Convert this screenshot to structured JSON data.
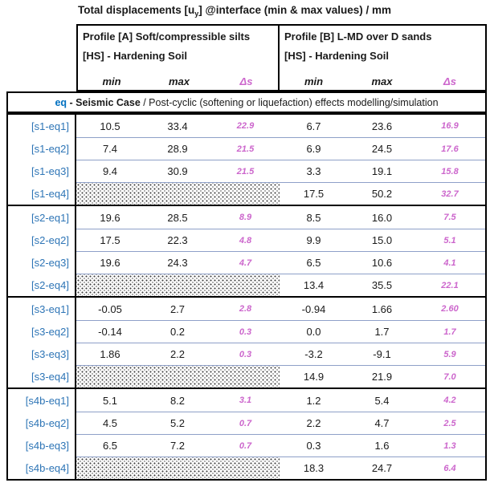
{
  "title": {
    "prefix": "Total displacements [u",
    "sub": "y",
    "suffix": "] @interface (min & max values) / mm"
  },
  "header": {
    "profile_a": {
      "line1": "Profile [A] Soft/compressible silts",
      "line2": "[HS] - Hardening Soil"
    },
    "profile_b": {
      "line1": "Profile [B] L-MD over D sands",
      "line2": "[HS] - Hardening Soil"
    },
    "columns": {
      "min": "min",
      "max": "max",
      "delta": "Δs"
    }
  },
  "section_header": {
    "eq": "eq",
    "case_label": " - Seismic Case",
    "description": " / Post-cyclic (softening or liquefaction) effects modelling/simulation"
  },
  "groups": [
    {
      "rows": [
        {
          "label": "[s1-eq1]",
          "hatched_a": false,
          "a": [
            "10.5",
            "33.4",
            "22.9"
          ],
          "b": [
            "6.7",
            "23.6",
            "16.9"
          ]
        },
        {
          "label": "[s1-eq2]",
          "hatched_a": false,
          "a": [
            "7.4",
            "28.9",
            "21.5"
          ],
          "b": [
            "6.9",
            "24.5",
            "17.6"
          ]
        },
        {
          "label": "[s1-eq3]",
          "hatched_a": false,
          "a": [
            "9.4",
            "30.9",
            "21.5"
          ],
          "b": [
            "3.3",
            "19.1",
            "15.8"
          ]
        },
        {
          "label": "[s1-eq4]",
          "hatched_a": true,
          "a": null,
          "b": [
            "17.5",
            "50.2",
            "32.7"
          ]
        }
      ]
    },
    {
      "rows": [
        {
          "label": "[s2-eq1]",
          "hatched_a": false,
          "a": [
            "19.6",
            "28.5",
            "8.9"
          ],
          "b": [
            "8.5",
            "16.0",
            "7.5"
          ]
        },
        {
          "label": "[s2-eq2]",
          "hatched_a": false,
          "a": [
            "17.5",
            "22.3",
            "4.8"
          ],
          "b": [
            "9.9",
            "15.0",
            "5.1"
          ]
        },
        {
          "label": "[s2-eq3]",
          "hatched_a": false,
          "a": [
            "19.6",
            "24.3",
            "4.7"
          ],
          "b": [
            "6.5",
            "10.6",
            "4.1"
          ]
        },
        {
          "label": "[s2-eq4]",
          "hatched_a": true,
          "a": null,
          "b": [
            "13.4",
            "35.5",
            "22.1"
          ]
        }
      ]
    },
    {
      "rows": [
        {
          "label": "[s3-eq1]",
          "hatched_a": false,
          "a": [
            "-0.05",
            "2.7",
            "2.8"
          ],
          "b": [
            "-0.94",
            "1.66",
            "2.60"
          ]
        },
        {
          "label": "[s3-eq2]",
          "hatched_a": false,
          "a": [
            "-0.14",
            "0.2",
            "0.3"
          ],
          "b": [
            "0.0",
            "1.7",
            "1.7"
          ]
        },
        {
          "label": "[s3-eq3]",
          "hatched_a": false,
          "a": [
            "1.86",
            "2.2",
            "0.3"
          ],
          "b": [
            "-3.2",
            "-9.1",
            "5.9"
          ]
        },
        {
          "label": "[s3-eq4]",
          "hatched_a": true,
          "a": null,
          "b": [
            "14.9",
            "21.9",
            "7.0"
          ]
        }
      ]
    },
    {
      "rows": [
        {
          "label": "[s4b-eq1]",
          "hatched_a": false,
          "a": [
            "5.1",
            "8.2",
            "3.1"
          ],
          "b": [
            "1.2",
            "5.4",
            "4.2"
          ]
        },
        {
          "label": "[s4b-eq2]",
          "hatched_a": false,
          "a": [
            "4.5",
            "5.2",
            "0.7"
          ],
          "b": [
            "2.2",
            "4.7",
            "2.5"
          ]
        },
        {
          "label": "[s4b-eq3]",
          "hatched_a": false,
          "a": [
            "6.5",
            "7.2",
            "0.7"
          ],
          "b": [
            "0.3",
            "1.6",
            "1.3"
          ]
        },
        {
          "label": "[s4b-eq4]",
          "hatched_a": true,
          "a": null,
          "b": [
            "18.3",
            "24.7",
            "6.4"
          ]
        }
      ]
    }
  ],
  "colors": {
    "label_blue": "#2E75B6",
    "eq_blue": "#0070C0",
    "delta_pink": "#CC66CC",
    "row_separator": "#8EA0C8",
    "border": "#000000"
  }
}
